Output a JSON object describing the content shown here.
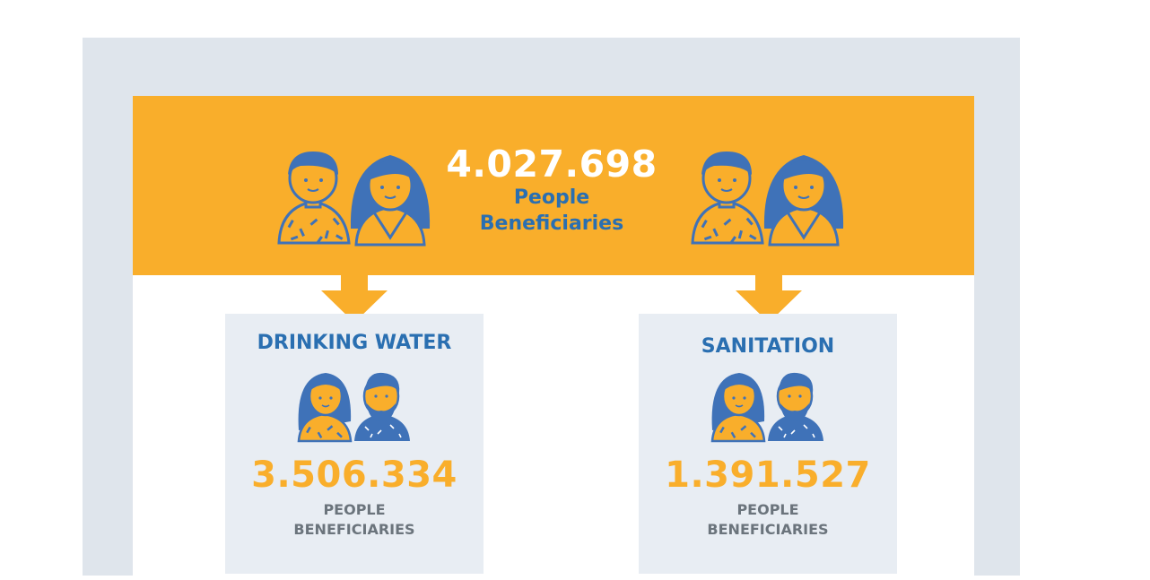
{
  "colors": {
    "banner": "#f9ae2b",
    "frame": "#dfe5ec",
    "card": "#e8edf3",
    "title_blue": "#2a6fb1",
    "figure_blue": "#3f72b8",
    "label_gray": "#6b747c",
    "value_orange": "#f9ae2b"
  },
  "banner": {
    "total": "4.027.698",
    "label_line1": "People",
    "label_line2": "Beneficiaries"
  },
  "cards": [
    {
      "title": "DRINKING WATER",
      "value": "3.506.334",
      "label_line1": "PEOPLE",
      "label_line2": "BENEFICIARIES"
    },
    {
      "title": "SANITATION",
      "value": "1.391.527",
      "label_line1": "PEOPLE",
      "label_line2": "BENEFICIARIES"
    }
  ],
  "icons": {
    "banner_people": "man-and-woman-icon",
    "card_people": "woman-and-bearded-man-icon",
    "arrow": "arrow-down-icon"
  }
}
